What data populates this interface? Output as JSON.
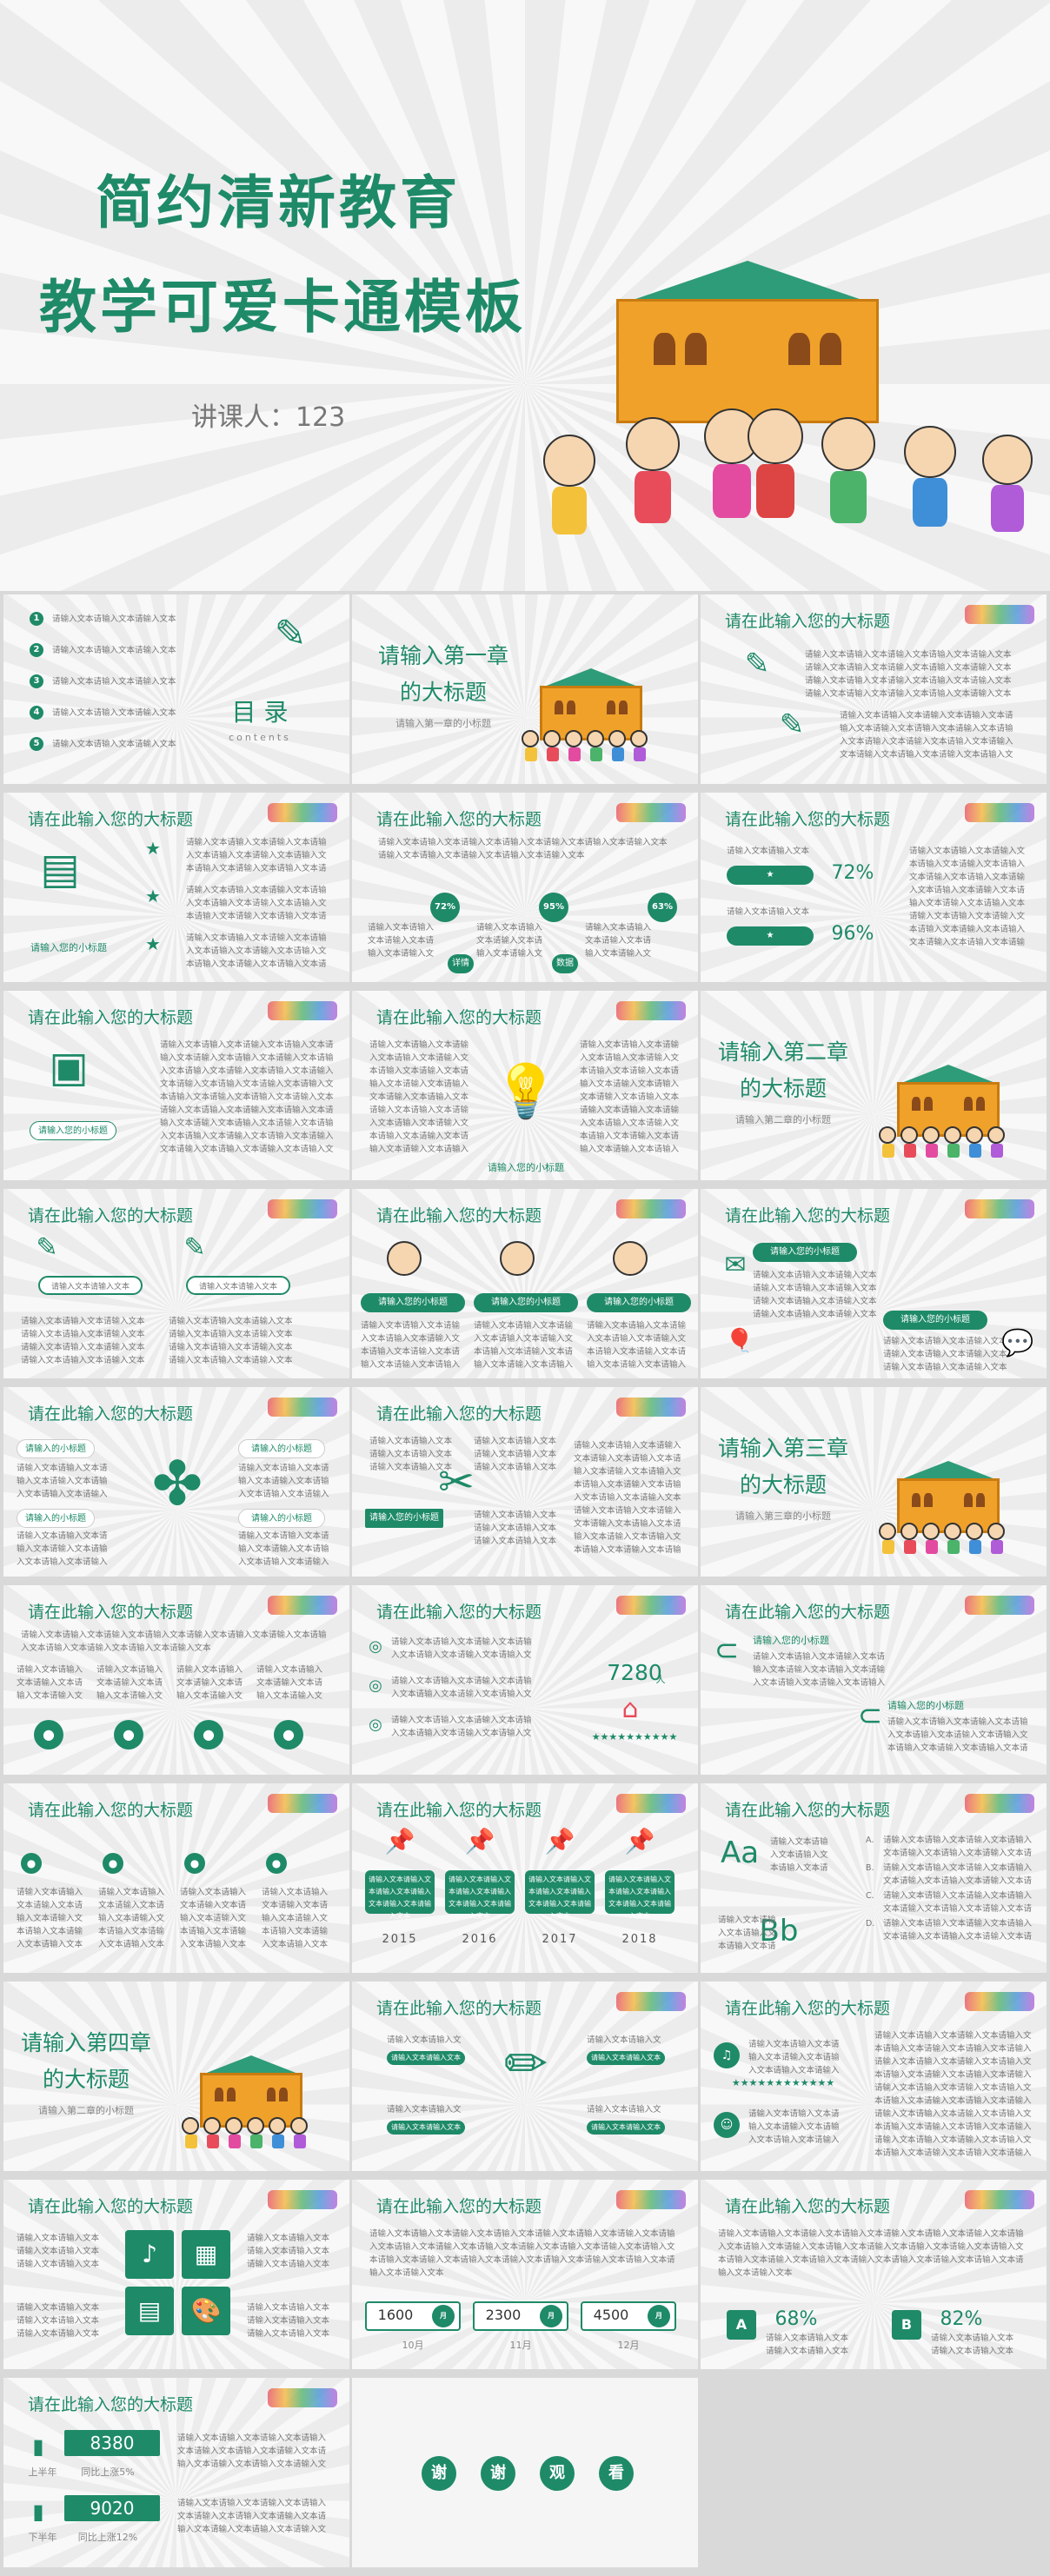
{
  "hero": {
    "title1": "简约清新教育",
    "title2": "教学可爱卡通模板",
    "speaker": "讲课人：123"
  },
  "slide_title": "请在此输入您的大标题",
  "body_text": "请输入文本请输入文本请输入文本请输入文本请输入文本请输入文本",
  "short_text": "请输入文本请输入文本",
  "toc": {
    "item": "请输入文本请输入文本请输入文本",
    "nums": [
      "1",
      "2",
      "3",
      "4",
      "5"
    ],
    "title": "目 录",
    "subtitle": "contents"
  },
  "chapters": [
    {
      "title1": "请输入第一章",
      "title2": "的大标题",
      "sub": "请输入第一章的小标题"
    },
    {
      "title1": "请输入第二章",
      "title2": "的大标题",
      "sub": "请输入第二章的小标题"
    },
    {
      "title1": "请输入第三章",
      "title2": "的大标题",
      "sub": "请输入第三章的小标题"
    },
    {
      "title1": "请输入第四章",
      "title2": "的大标题",
      "sub": "请输入第二章的小标题"
    }
  ],
  "small_title": "请输入您的小标题",
  "small_title_short": "请输入的小标题",
  "percents": {
    "p1": "72%",
    "p2": "95%",
    "p3": "63%",
    "p4": "96%",
    "detail": "详情",
    "data": "数据"
  },
  "count": {
    "value": "7280",
    "unit": "人"
  },
  "years": [
    "2015",
    "2016",
    "2017",
    "2018"
  ],
  "letters": {
    "a": "Aa",
    "b": "Bb",
    "ab_a": "A",
    "ab_b": "B"
  },
  "options": [
    "A.",
    "B.",
    "C.",
    "D."
  ],
  "stats": [
    {
      "value": "1600",
      "unit": "月",
      "label": "10月"
    },
    {
      "value": "2300",
      "unit": "月",
      "label": "11月"
    },
    {
      "value": "4500",
      "unit": "月",
      "label": "12月"
    }
  ],
  "ab_percent": {
    "a": "68%",
    "b": "82%"
  },
  "final_stats": {
    "v1": "8380",
    "v2": "9020",
    "unit": "万",
    "l1": "上半年",
    "c1": "同比上涨5%",
    "l2": "下半年",
    "c2": "同比上涨12%"
  },
  "thanks": [
    "谢",
    "谢",
    "观",
    "看"
  ],
  "colors": {
    "primary": "#1e8a68",
    "accent": "#f0a12a"
  }
}
